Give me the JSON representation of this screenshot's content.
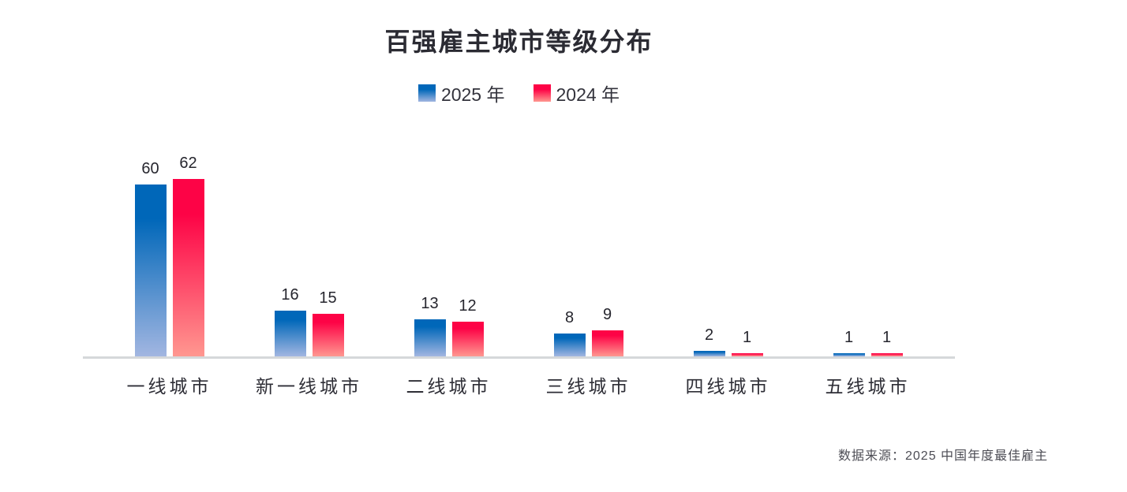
{
  "title": "百强雇主城市等级分布",
  "legend": {
    "items": [
      {
        "label": "2025 年",
        "series_key": "2025"
      },
      {
        "label": "2024 年",
        "series_key": "2024"
      }
    ]
  },
  "source_note": "数据来源：2025 中国年度最佳雇主",
  "colors": {
    "background": "#ffffff",
    "title_text": "#2b2b33",
    "value_label_text": "#26262e",
    "category_text": "#2e2e36",
    "source_text": "#4d4d55",
    "axis_line": "#d5d8da",
    "series": [
      {
        "name": "2025 年",
        "gradient_top": "#0067b9",
        "gradient_bottom": "#a2b6e1"
      },
      {
        "name": "2024 年",
        "gradient_top": "#fd0346",
        "gradient_bottom": "#ff9790"
      }
    ]
  },
  "chart_data": {
    "type": "bar",
    "title": "百强雇主城市等级分布",
    "categories": [
      "一线城市",
      "新一线城市",
      "二线城市",
      "三线城市",
      "四线城市",
      "五线城市"
    ],
    "series": [
      {
        "name": "2025 年",
        "values": [
          60,
          16,
          13,
          8,
          2,
          1
        ]
      },
      {
        "name": "2024 年",
        "values": [
          62,
          15,
          12,
          9,
          1,
          1
        ]
      }
    ],
    "xlabel": "",
    "ylabel": "",
    "ylim": [
      0,
      62
    ],
    "grid": false,
    "legend_position": "top",
    "data_labels": true,
    "source_note": "数据来源：2025 中国年度最佳雇主"
  }
}
